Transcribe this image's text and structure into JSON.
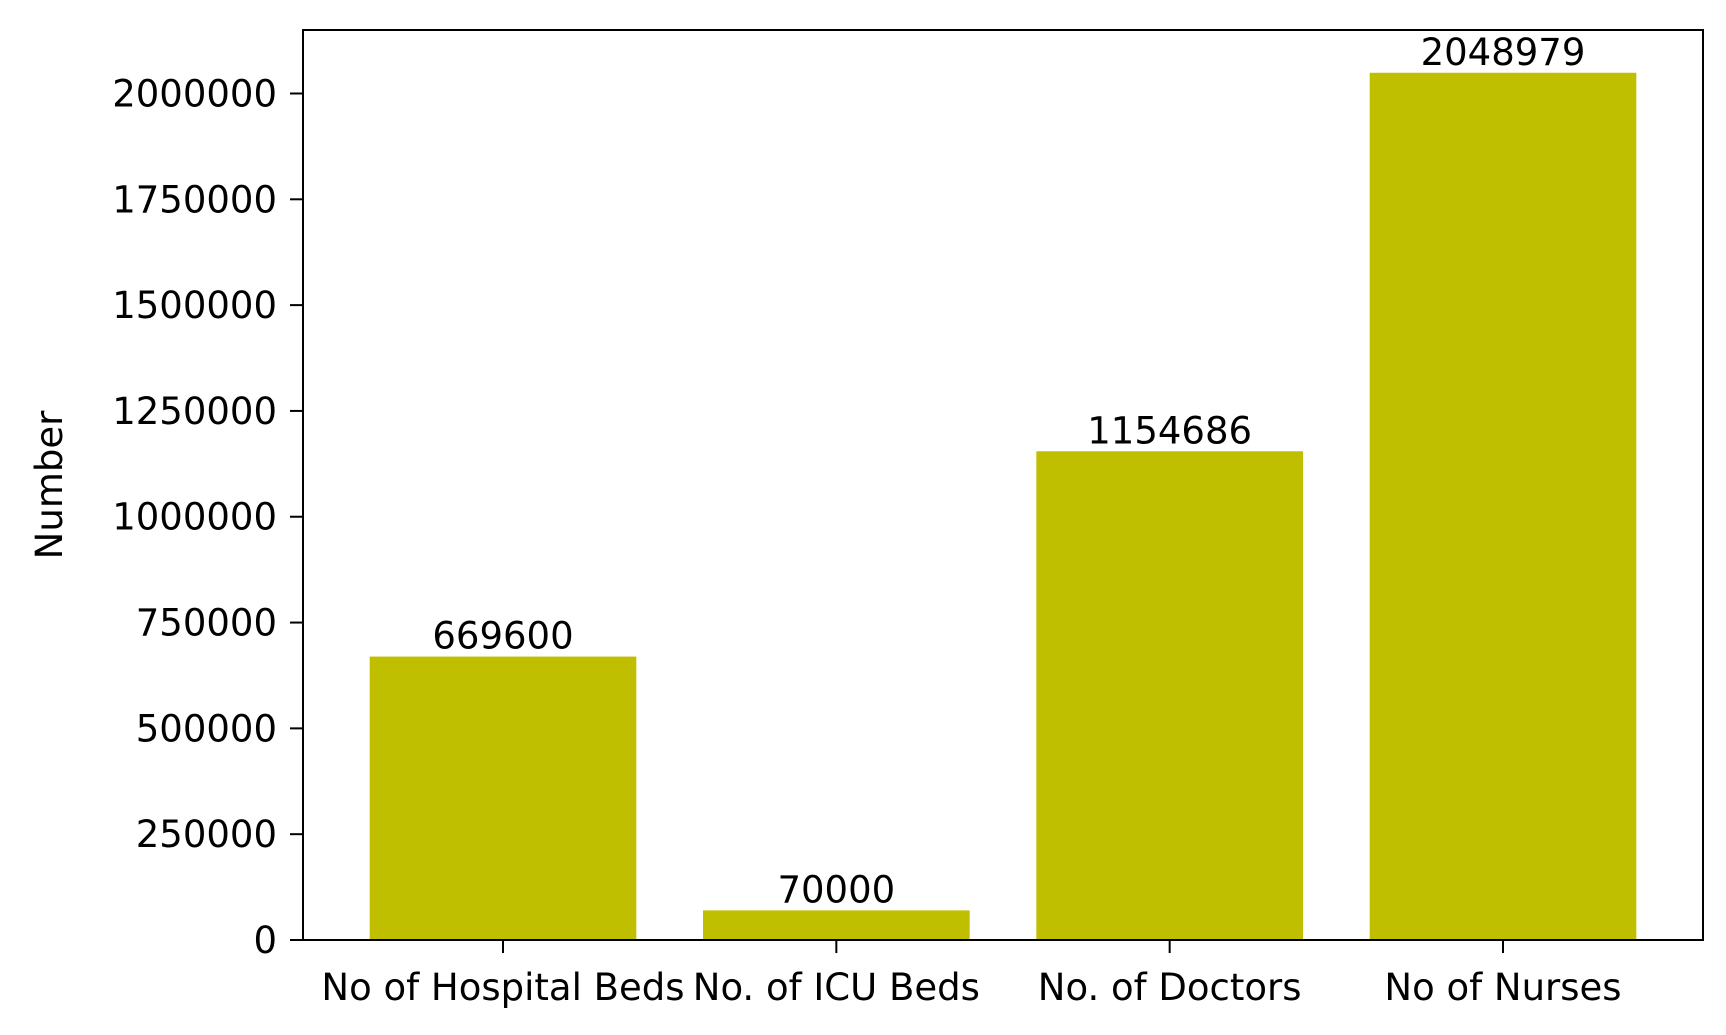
{
  "chart_data": {
    "type": "bar",
    "categories": [
      "No of Hospital Beds",
      "No. of ICU Beds",
      "No. of Doctors",
      "No of Nurses"
    ],
    "values": [
      669600,
      70000,
      1154686,
      2048979
    ],
    "data_labels": [
      "669600",
      "70000",
      "1154686",
      "2048979"
    ],
    "title": "",
    "xlabel": "",
    "ylabel": "Number",
    "ylim": [
      0,
      2150000
    ],
    "yticks": [
      0,
      250000,
      500000,
      750000,
      1000000,
      1250000,
      1500000,
      1750000,
      2000000
    ],
    "ytick_labels": [
      "0",
      "250000",
      "500000",
      "750000",
      "1000000",
      "1250000",
      "1500000",
      "1750000",
      "2000000"
    ],
    "bar_color": "#bfbf00",
    "grid": false,
    "legend": "none"
  }
}
